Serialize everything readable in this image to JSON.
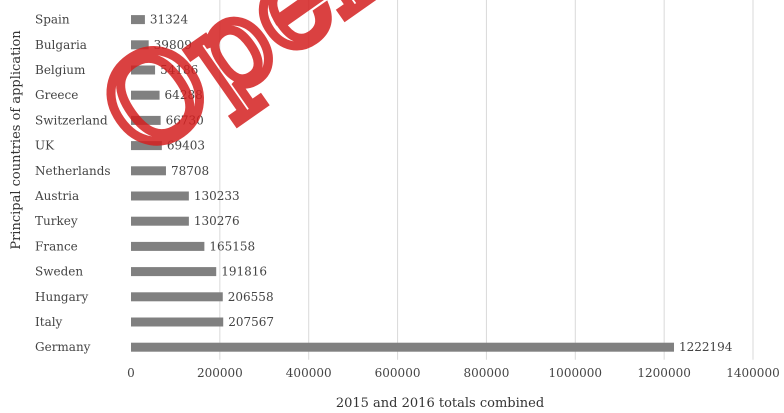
{
  "chart_data": {
    "type": "bar",
    "orientation": "horizontal",
    "categories": [
      "Spain",
      "Bulgaria",
      "Belgium",
      "Greece",
      "Switzerland",
      "UK",
      "Netherlands",
      "Austria",
      "Turkey",
      "France",
      "Sweden",
      "Hungary",
      "Italy",
      "Germany"
    ],
    "values": [
      31324,
      39809,
      54186,
      64288,
      66730,
      69403,
      78708,
      130233,
      130276,
      165158,
      191816,
      206558,
      207567,
      1222194
    ],
    "xlabel": "2015 and 2016 totals combined",
    "ylabel": "Principal countries of application",
    "xlim": [
      0,
      1400000
    ],
    "xticks": [
      "0",
      "200000",
      "400000",
      "600000",
      "800000",
      "1000000",
      "1200000",
      "1400000"
    ],
    "grid": "vertical",
    "bar_color": "#808080",
    "watermark_text": "Open"
  }
}
